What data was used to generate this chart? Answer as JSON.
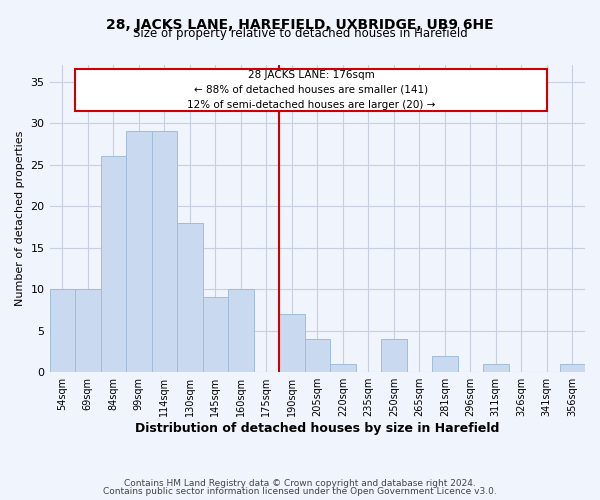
{
  "title": "28, JACKS LANE, HAREFIELD, UXBRIDGE, UB9 6HE",
  "subtitle": "Size of property relative to detached houses in Harefield",
  "xlabel": "Distribution of detached houses by size in Harefield",
  "ylabel": "Number of detached properties",
  "bar_labels": [
    "54sqm",
    "69sqm",
    "84sqm",
    "99sqm",
    "114sqm",
    "130sqm",
    "145sqm",
    "160sqm",
    "175sqm",
    "190sqm",
    "205sqm",
    "220sqm",
    "235sqm",
    "250sqm",
    "265sqm",
    "281sqm",
    "296sqm",
    "311sqm",
    "326sqm",
    "341sqm",
    "356sqm"
  ],
  "bar_values": [
    10,
    10,
    26,
    29,
    29,
    18,
    9,
    10,
    0,
    7,
    4,
    1,
    0,
    4,
    0,
    2,
    0,
    1,
    0,
    0,
    1
  ],
  "bar_color": "#c8d9f0",
  "bar_edge_color": "#a0bcd8",
  "vline_x_index": 8.5,
  "vline_color": "#cc0000",
  "annotation_line1": "28 JACKS LANE: 176sqm",
  "annotation_line2": "← 88% of detached houses are smaller (141)",
  "annotation_line3": "12% of semi-detached houses are larger (20) →",
  "annotation_box_color": "#ffffff",
  "annotation_box_edge": "#cc0000",
  "ylim": [
    0,
    37
  ],
  "yticks": [
    0,
    5,
    10,
    15,
    20,
    25,
    30,
    35
  ],
  "footer_line1": "Contains HM Land Registry data © Crown copyright and database right 2024.",
  "footer_line2": "Contains public sector information licensed under the Open Government Licence v3.0.",
  "bg_color": "#f0f4fc",
  "grid_color": "#c8d0e0",
  "title_fontsize": 10,
  "subtitle_fontsize": 8.5,
  "ylabel_fontsize": 8,
  "xlabel_fontsize": 9,
  "tick_fontsize": 7,
  "footer_fontsize": 6.5
}
